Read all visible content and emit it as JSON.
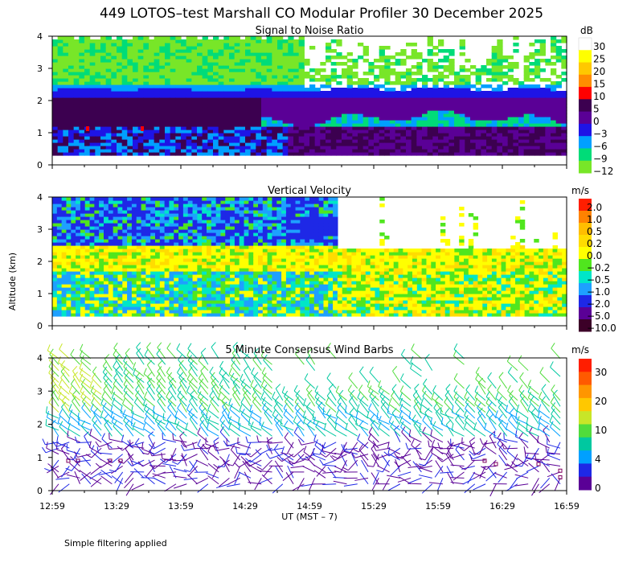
{
  "title": "449 LOTOS–test Marshall CO Modular Profiler 30 December 2025",
  "y_axis_label": "Altitude (km)",
  "x_axis_label": "UT  (MST – 7)",
  "footer_note": "Simple filtering applied",
  "x_ticks": [
    "12:59",
    "13:29",
    "13:59",
    "14:29",
    "14:59",
    "15:29",
    "15:59",
    "16:29",
    "16:59"
  ],
  "y_ticks": [
    "0",
    "1",
    "2",
    "3",
    "4"
  ],
  "panels": [
    {
      "title": "Signal to Noise Ratio",
      "unit": "dB",
      "colorbar_labels": [
        "30",
        "25",
        "20",
        "15",
        "10",
        "5",
        "0",
        "−3",
        "−6",
        "−9",
        "−12"
      ],
      "colorbar_colors": [
        "#ffffff",
        "#ffff00",
        "#ffc800",
        "#ff8c00",
        "#ff0000",
        "#3c0050",
        "#5a0096",
        "#1e14e6",
        "#00a0ff",
        "#00dc78",
        "#78e628"
      ]
    },
    {
      "title": "Vertical Velocity",
      "unit": "m/s",
      "colorbar_labels": [
        "2.0",
        "1.0",
        "0.5",
        "0.2",
        "0.0",
        "−0.2",
        "−0.5",
        "−1.0",
        "−2.0",
        "−5.0",
        "−10.0"
      ],
      "colorbar_colors": [
        "#ff1e00",
        "#ff8200",
        "#ffbe00",
        "#ffdc00",
        "#ffff00",
        "#50e61e",
        "#00e6c8",
        "#1ea0ff",
        "#1e28e6",
        "#5a0096",
        "#3c0028"
      ]
    },
    {
      "title": "5 Minute Consensus Wind Barbs",
      "unit": "m/s",
      "colorbar_labels": [
        "30",
        "20",
        "10",
        "4",
        "0"
      ],
      "colorbar_colors": [
        "#ff1e00",
        "#ff5a00",
        "#ff9600",
        "#ffc800",
        "#c8e628",
        "#50dc3c",
        "#00c8a0",
        "#00a0ff",
        "#1e28e6",
        "#5a0096"
      ]
    }
  ],
  "chart_data": [
    {
      "type": "heatmap",
      "title": "Signal to Noise Ratio",
      "unit": "dB",
      "xlabel": "UT  (MST – 7)",
      "ylabel": "Altitude (km)",
      "x_range": [
        "12:59",
        "16:59"
      ],
      "ylim": [
        0,
        4
      ],
      "layers": [
        {
          "from_km": 0.3,
          "to_km": 1.7,
          "time": "12:59–14:59",
          "snr_db": [
            0,
            5
          ]
        },
        {
          "from_km": 0.3,
          "to_km": 1.2,
          "time": "14:59–16:59",
          "snr_db": [
            -6,
            5
          ]
        },
        {
          "from_km": 1.2,
          "to_km": 2.3,
          "time": "12:59–16:59",
          "snr_db": [
            0,
            5
          ]
        },
        {
          "from_km": 2.3,
          "to_km": 4.0,
          "time": "12:59–15:00",
          "snr_db": [
            -12,
            -9
          ]
        }
      ]
    },
    {
      "type": "heatmap",
      "title": "Vertical Velocity",
      "unit": "m/s",
      "xlabel": "UT  (MST – 7)",
      "ylabel": "Altitude (km)",
      "x_range": [
        "12:59",
        "16:59"
      ],
      "ylim": [
        0,
        4
      ],
      "layers": [
        {
          "from_km": 0.3,
          "to_km": 1.7,
          "time": "12:59–16:59",
          "w_ms": [
            -1.0,
            0.2
          ]
        },
        {
          "from_km": 1.7,
          "to_km": 2.5,
          "time": "12:59–16:59",
          "w_ms": [
            0.0,
            0.5
          ]
        },
        {
          "from_km": 2.5,
          "to_km": 4.0,
          "time": "12:59–14:59",
          "w_ms": [
            -2.0,
            -0.2
          ]
        }
      ]
    },
    {
      "type": "scatter",
      "title": "5 Minute Consensus Wind Barbs",
      "unit": "m/s",
      "xlabel": "UT  (MST – 7)",
      "ylabel": "Altitude (km)",
      "x_range": [
        "12:59",
        "16:59"
      ],
      "ylim": [
        0,
        4
      ],
      "speed_bands": [
        {
          "from_km": 0.1,
          "to_km": 1.6,
          "speed_ms": [
            0,
            4
          ]
        },
        {
          "from_km": 1.6,
          "to_km": 2.2,
          "speed_ms": [
            4,
            10
          ]
        },
        {
          "from_km": 2.2,
          "to_km": 4.0,
          "speed_ms": [
            8,
            12
          ]
        }
      ]
    }
  ]
}
